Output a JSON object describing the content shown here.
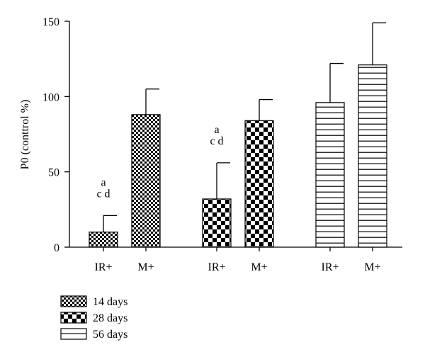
{
  "chart_data": {
    "type": "bar",
    "ylabel": "P0 (conttrol %)",
    "ylim": [
      0,
      150
    ],
    "yticks": [
      0,
      50,
      100,
      150
    ],
    "group_labels": [
      "IR+",
      "M+",
      "IR+",
      "M+",
      "IR+",
      "M+"
    ],
    "series": [
      {
        "name": "14 days",
        "pattern": "fine-checker",
        "values": [
          10,
          88
        ],
        "errors": [
          11,
          17
        ],
        "annotations": [
          "a c d",
          ""
        ]
      },
      {
        "name": "28 days",
        "pattern": "coarse-checker",
        "values": [
          32,
          84
        ],
        "errors": [
          24,
          14
        ],
        "annotations": [
          "a c d",
          ""
        ]
      },
      {
        "name": "56 days",
        "pattern": "horizontal-stripes",
        "values": [
          96,
          121
        ],
        "errors": [
          26,
          28
        ],
        "annotations": [
          "",
          ""
        ]
      }
    ],
    "legend_position": "bottom-left",
    "colors": {
      "fill": "#ffffff",
      "ink": "#000000"
    }
  }
}
